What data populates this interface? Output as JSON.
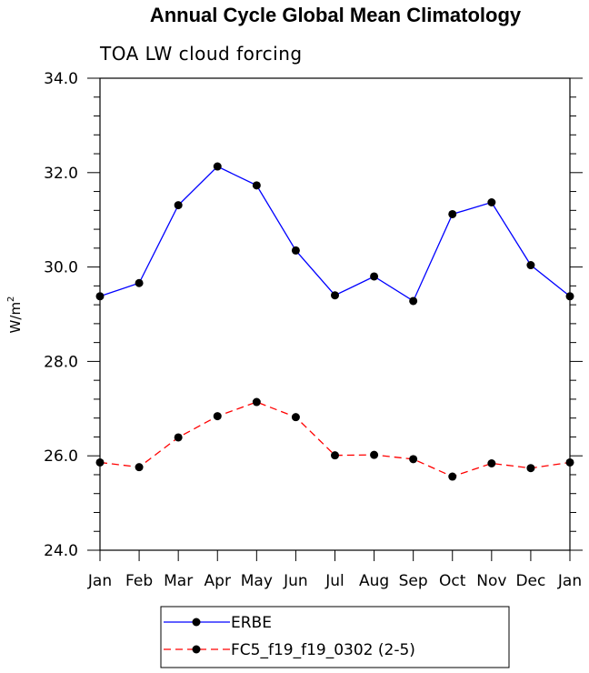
{
  "chart_data": {
    "type": "line",
    "title": "Annual Cycle Global Mean Climatology",
    "subtitle": "TOA LW cloud forcing",
    "ylabel": "W/m",
    "ylabel_sup": "2",
    "xlabel": "",
    "ylim": [
      24.0,
      34.0
    ],
    "yticks": [
      "24.0",
      "26.0",
      "28.0",
      "30.0",
      "32.0",
      "34.0"
    ],
    "categories": [
      "Jan",
      "Feb",
      "Mar",
      "Apr",
      "May",
      "Jun",
      "Jul",
      "Aug",
      "Sep",
      "Oct",
      "Nov",
      "Dec",
      "Jan"
    ],
    "grid": false,
    "legend_position": "bottom",
    "series": [
      {
        "name": "ERBE",
        "color": "#0000ff",
        "dash": "solid",
        "values": [
          29.38,
          29.66,
          31.31,
          32.13,
          31.73,
          30.35,
          29.4,
          29.8,
          29.28,
          31.12,
          31.37,
          30.04,
          29.38
        ]
      },
      {
        "name": "FC5_f19_f19_0302 (2-5)",
        "color": "#ff0000",
        "dash": "dashed",
        "values": [
          25.86,
          25.76,
          26.39,
          26.84,
          27.14,
          26.82,
          26.01,
          26.02,
          25.93,
          25.56,
          25.84,
          25.74,
          25.86
        ]
      }
    ]
  }
}
